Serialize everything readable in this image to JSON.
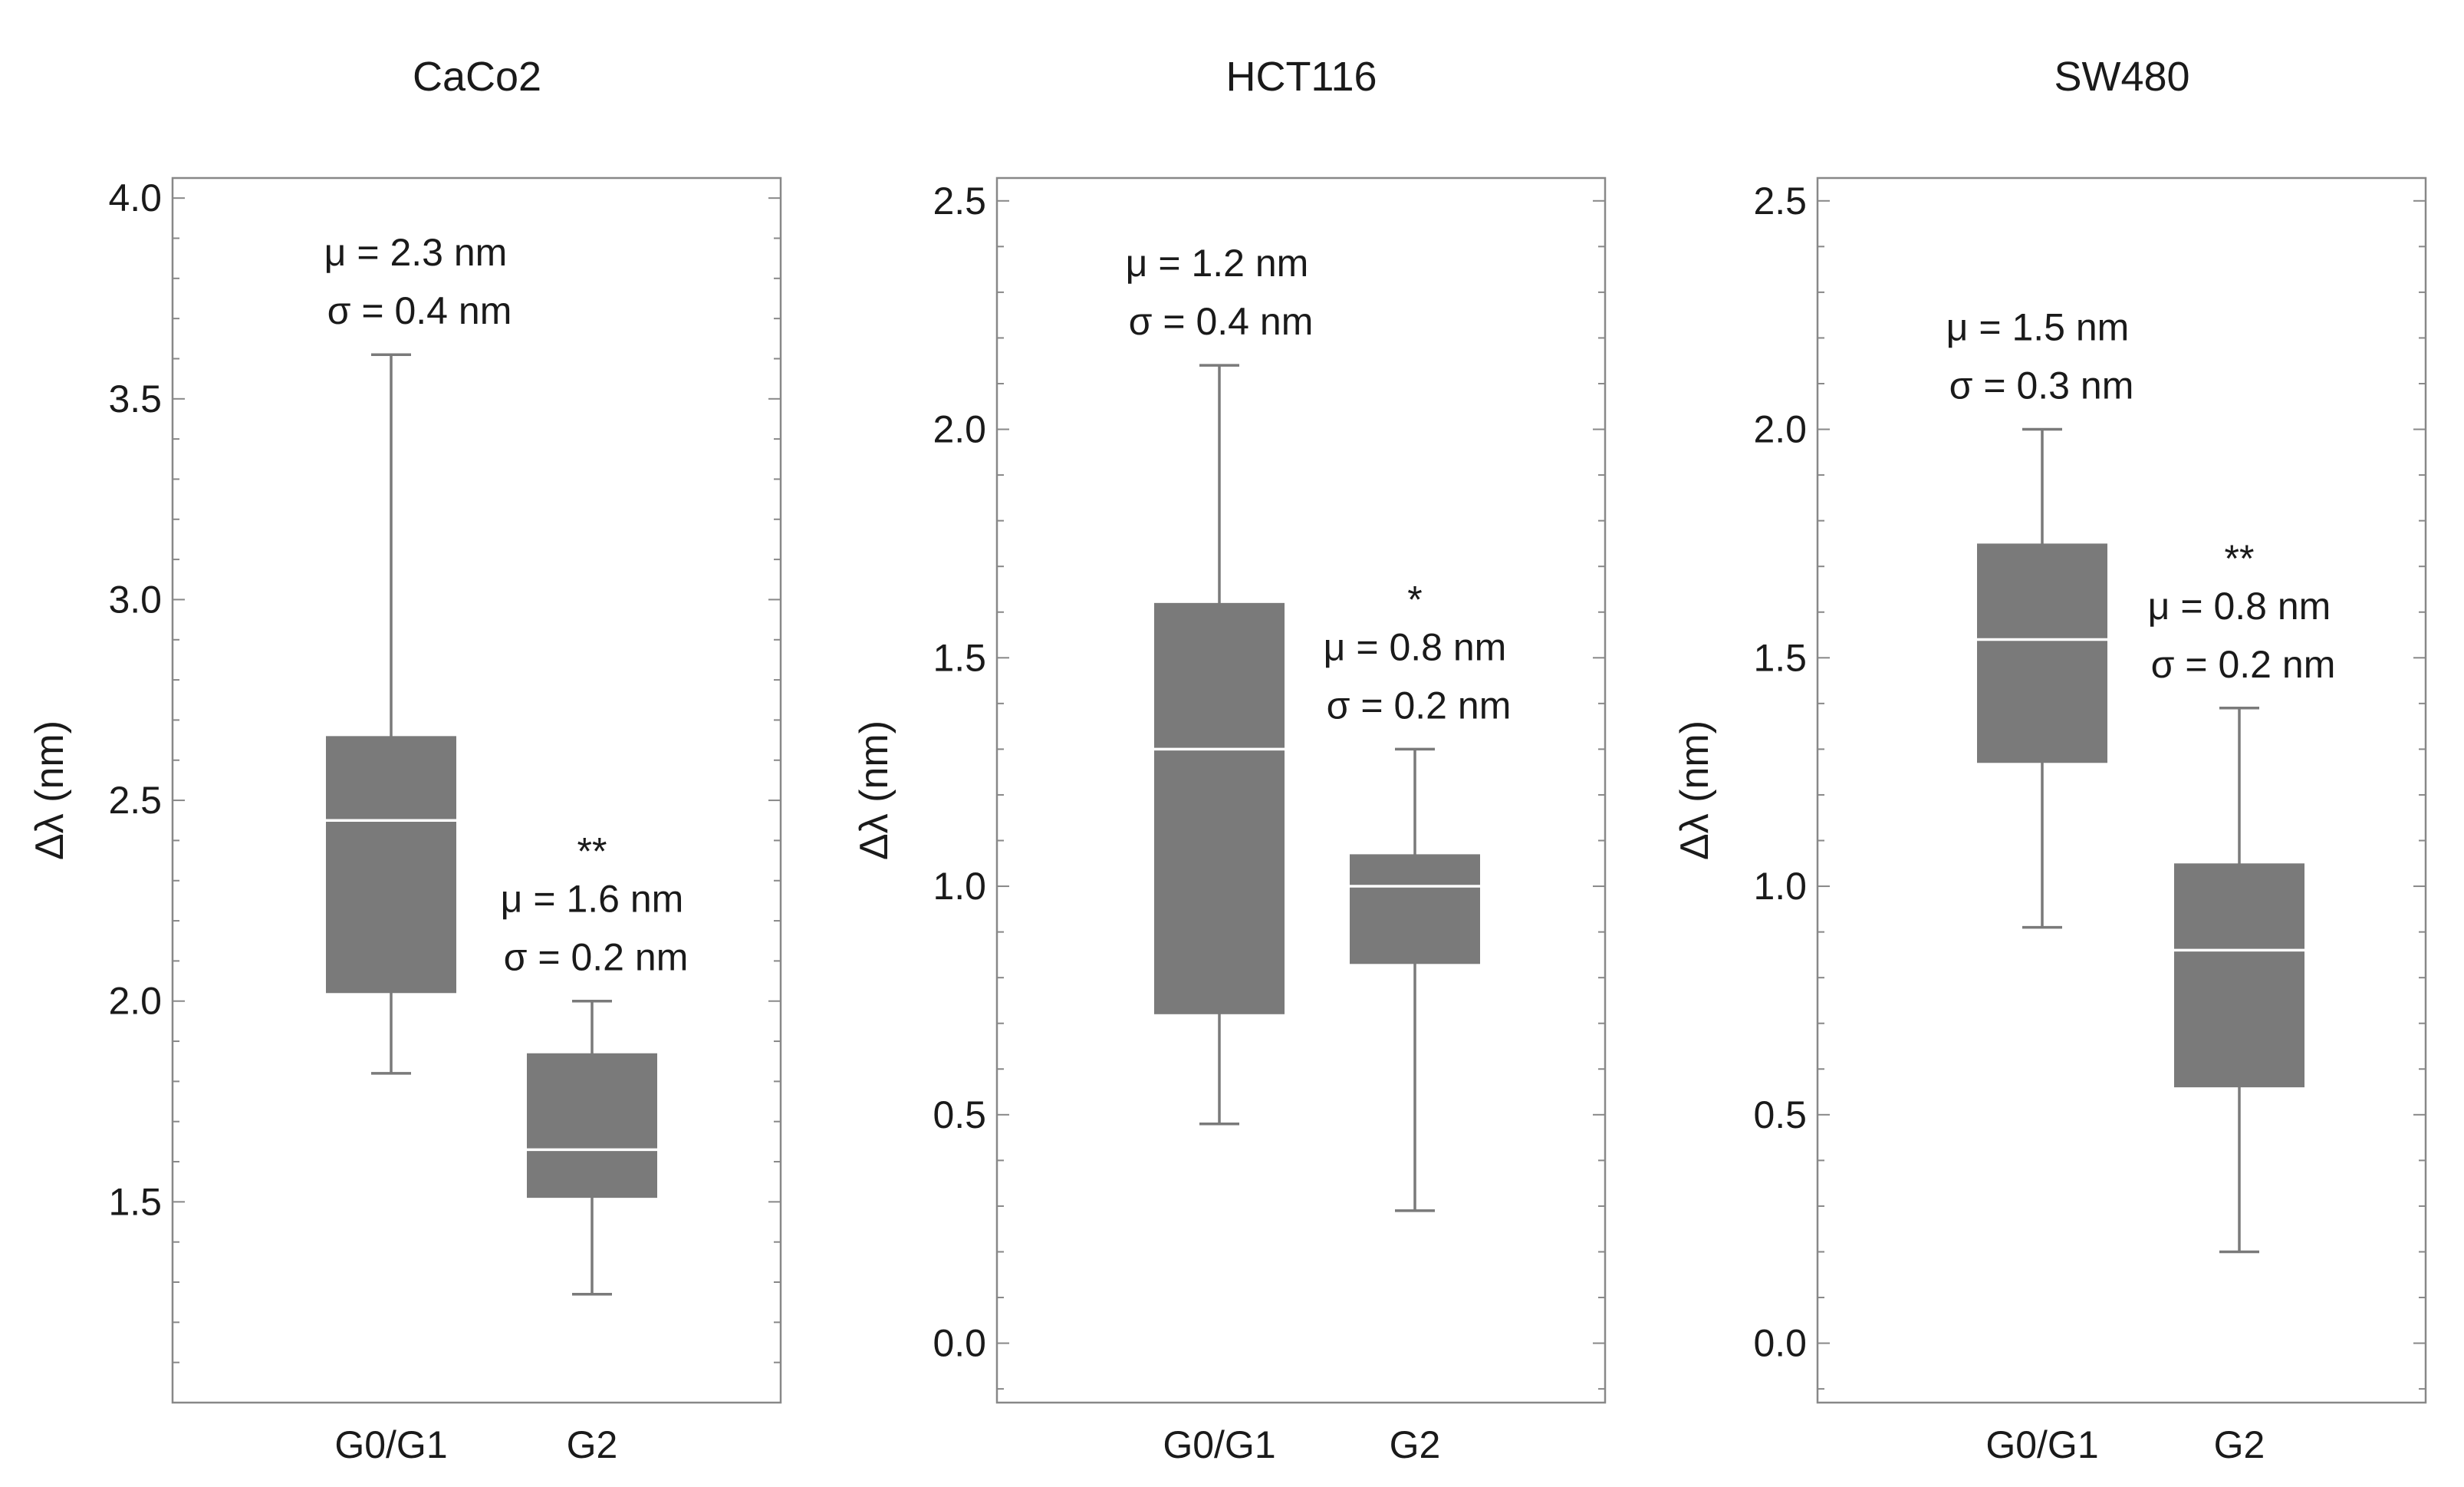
{
  "figure": {
    "box_color": "#7a7a7a",
    "median_color": "#ffffff",
    "frame_color": "#888888"
  },
  "chart_data": [
    {
      "type": "box",
      "title": "CaCo2",
      "ylabel": "Δλ (nm)",
      "ylim": [
        1.0,
        4.05
      ],
      "yticks": [
        1.5,
        2.0,
        2.5,
        3.0,
        3.5,
        4.0
      ],
      "ytick_labels": [
        "1.5",
        "2.0",
        "2.5",
        "3.0",
        "3.5",
        "4.0"
      ],
      "categories": [
        "G0/G1",
        "G2"
      ],
      "boxes": [
        {
          "name": "G0/G1",
          "whisker_low": 1.82,
          "q1": 2.02,
          "median": 2.45,
          "q3": 2.66,
          "whisker_high": 3.61,
          "mu_text": "μ = 2.3 nm",
          "sigma_text": "σ = 0.4 nm",
          "sig": ""
        },
        {
          "name": "G2",
          "whisker_low": 1.27,
          "q1": 1.51,
          "median": 1.63,
          "q3": 1.87,
          "whisker_high": 2.0,
          "mu_text": "μ = 1.6 nm",
          "sigma_text": "σ = 0.2 nm",
          "sig": "**"
        }
      ]
    },
    {
      "type": "box",
      "title": "HCT116",
      "ylabel": "Δλ (nm)",
      "ylim": [
        -0.13,
        2.55
      ],
      "yticks": [
        0.0,
        0.5,
        1.0,
        1.5,
        2.0,
        2.5
      ],
      "ytick_labels": [
        "0.0",
        "0.5",
        "1.0",
        "1.5",
        "2.0",
        "2.5"
      ],
      "categories": [
        "G0/G1",
        "G2"
      ],
      "boxes": [
        {
          "name": "G0/G1",
          "whisker_low": 0.48,
          "q1": 0.72,
          "median": 1.3,
          "q3": 1.62,
          "whisker_high": 2.14,
          "mu_text": "μ = 1.2 nm",
          "sigma_text": "σ = 0.4 nm",
          "sig": ""
        },
        {
          "name": "G2",
          "whisker_low": 0.29,
          "q1": 0.83,
          "median": 1.0,
          "q3": 1.07,
          "whisker_high": 1.3,
          "mu_text": "μ = 0.8 nm",
          "sigma_text": "σ = 0.2 nm",
          "sig": "*"
        }
      ]
    },
    {
      "type": "box",
      "title": "SW480",
      "ylabel": "Δλ (nm)",
      "ylim": [
        -0.13,
        2.55
      ],
      "yticks": [
        0.0,
        0.5,
        1.0,
        1.5,
        2.0,
        2.5
      ],
      "ytick_labels": [
        "0.0",
        "0.5",
        "1.0",
        "1.5",
        "2.0",
        "2.5"
      ],
      "categories": [
        "G0/G1",
        "G2"
      ],
      "boxes": [
        {
          "name": "G0/G1",
          "whisker_low": 0.91,
          "q1": 1.27,
          "median": 1.54,
          "q3": 1.75,
          "whisker_high": 2.0,
          "mu_text": "μ = 1.5 nm",
          "sigma_text": "σ = 0.3 nm",
          "sig": ""
        },
        {
          "name": "G2",
          "whisker_low": 0.2,
          "q1": 0.56,
          "median": 0.86,
          "q3": 1.05,
          "whisker_high": 1.39,
          "mu_text": "μ = 0.8 nm",
          "sigma_text": "σ = 0.2 nm",
          "sig": "**"
        }
      ]
    }
  ]
}
